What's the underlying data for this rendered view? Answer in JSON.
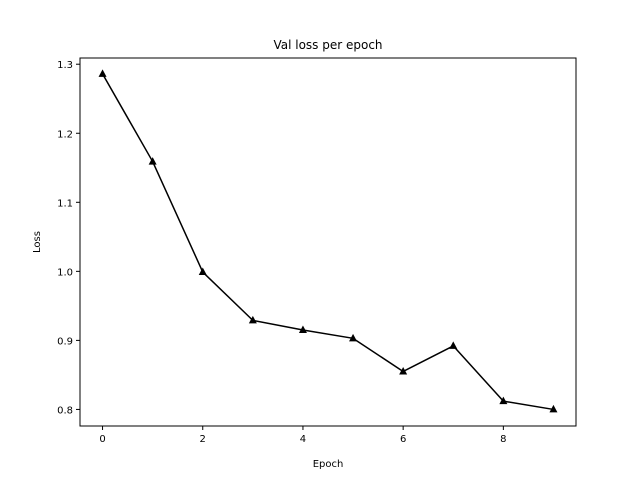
{
  "chart_data": {
    "type": "line",
    "title": "Val loss per epoch",
    "xlabel": "Epoch",
    "ylabel": "Loss",
    "xlim": [
      -0.45,
      9.45
    ],
    "ylim": [
      0.776,
      1.309
    ],
    "x_ticks": [
      0,
      2,
      4,
      6,
      8
    ],
    "y_ticks": [
      0.8,
      0.9,
      1.0,
      1.1,
      1.2,
      1.3
    ],
    "x_tick_labels": [
      "0",
      "2",
      "4",
      "6",
      "8"
    ],
    "y_tick_labels": [
      "0.8",
      "0.9",
      "1.0",
      "1.1",
      "1.2",
      "1.3"
    ],
    "grid": false,
    "series": [
      {
        "color": "#000000",
        "marker": "triangle-up",
        "x": [
          0,
          1,
          2,
          3,
          4,
          5,
          6,
          7,
          8,
          9
        ],
        "y": [
          1.286,
          1.159,
          0.999,
          0.929,
          0.915,
          0.903,
          0.855,
          0.892,
          0.812,
          0.8
        ]
      }
    ]
  }
}
